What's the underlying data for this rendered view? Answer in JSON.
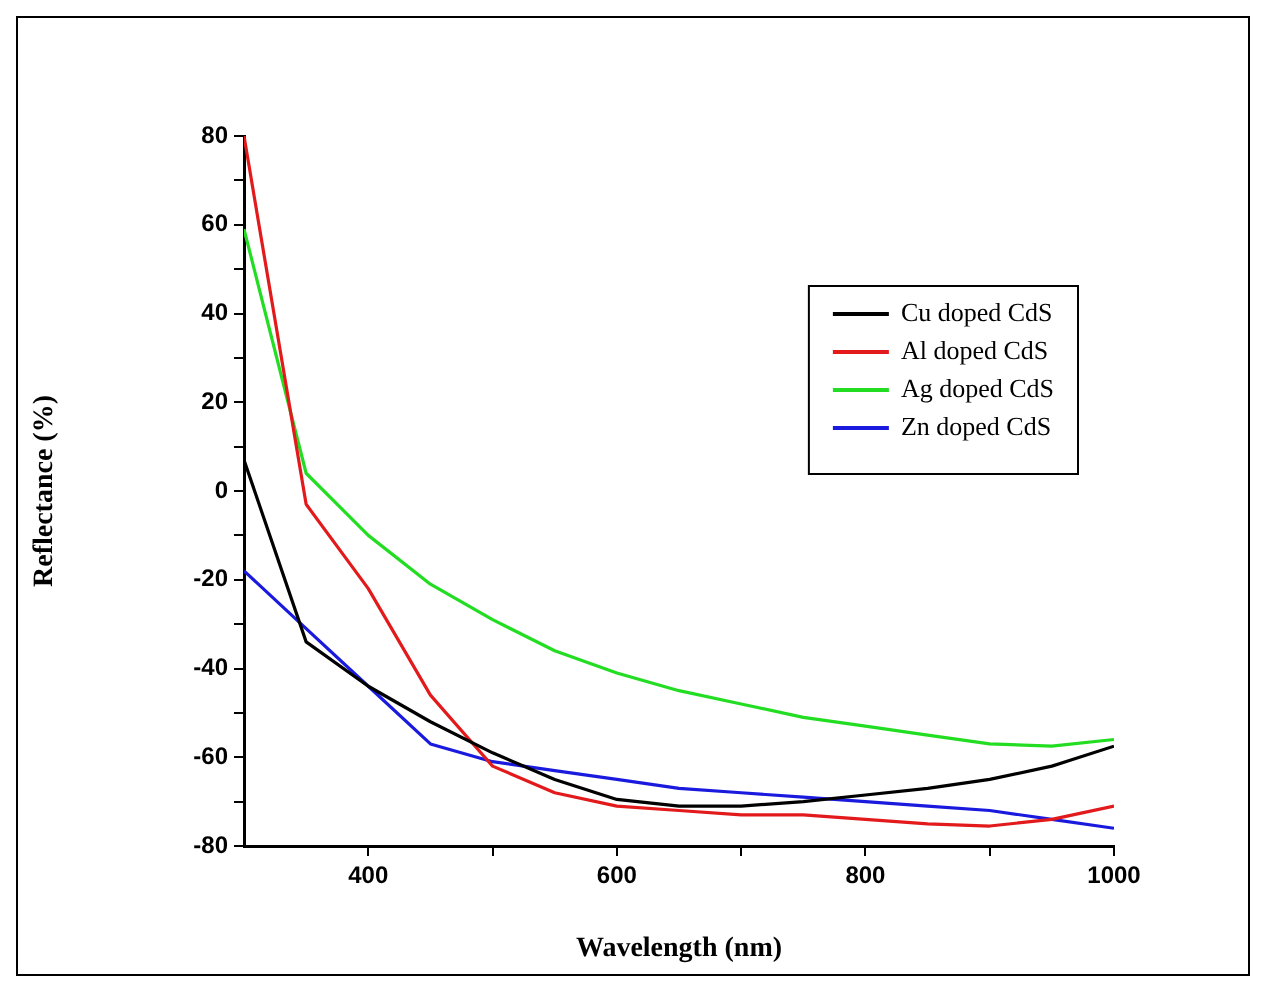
{
  "chart_data": {
    "type": "line",
    "xlabel": "Wavelength (nm)",
    "ylabel": "Reflectance (%)",
    "x": [
      300,
      350,
      400,
      450,
      500,
      550,
      600,
      650,
      700,
      750,
      800,
      850,
      900,
      950,
      1000
    ],
    "series": [
      {
        "name": "Cu doped CdS",
        "color": "#000000",
        "values": [
          7,
          -34,
          -44,
          -52,
          -59,
          -65,
          -69.5,
          -71,
          -71,
          -70,
          -68.5,
          -67,
          -65,
          -62,
          -57.5
        ]
      },
      {
        "name": "Al doped CdS",
        "color": "#e31a1c",
        "values": [
          80,
          -3,
          -22,
          -46,
          -62,
          -68,
          -71,
          -72,
          -73,
          -73,
          -74,
          -75,
          -75.5,
          -74,
          -71
        ]
      },
      {
        "name": "Ag doped CdS",
        "color": "#22dd22",
        "values": [
          59,
          4,
          -10,
          -21,
          -29,
          -36,
          -41,
          -45,
          -48,
          -51,
          -53,
          -55,
          -57,
          -57.5,
          -56
        ]
      },
      {
        "name": "Zn doped CdS",
        "color": "#1a1adf",
        "values": [
          -18,
          -31,
          -44,
          -57,
          -61,
          -63,
          -65,
          -67,
          -68,
          -69,
          -70,
          -71,
          -72,
          -74,
          -76
        ]
      }
    ],
    "xlim": [
      300,
      1000
    ],
    "ylim": [
      -80,
      80
    ],
    "xticks": [
      400,
      {
        "value": 500,
        "label": null
      },
      600,
      {
        "value": 700,
        "label": null
      },
      800,
      {
        "value": 900,
        "label": null
      },
      1000
    ],
    "yticks": [
      -80,
      {
        "value": -70,
        "label": null
      },
      -60,
      {
        "value": -50,
        "label": null
      },
      -40,
      {
        "value": -30,
        "label": null
      },
      -20,
      {
        "value": -10,
        "label": null
      },
      0,
      {
        "value": 10,
        "label": null
      },
      20,
      {
        "value": 30,
        "label": null
      },
      40,
      {
        "value": 50,
        "label": null
      },
      60,
      {
        "value": 70,
        "label": null
      },
      80
    ],
    "grid": false,
    "legend": "top right",
    "marker": "none",
    "line_style": "solid"
  }
}
